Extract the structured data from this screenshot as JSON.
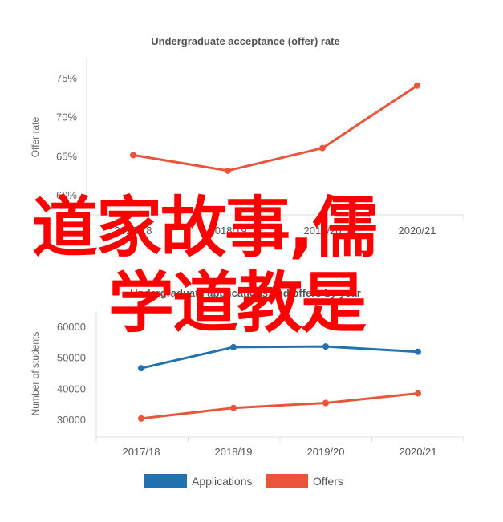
{
  "chart_data": [
    {
      "type": "line",
      "title": "Undergraduate acceptance (offer) rate",
      "ylabel": "Offer rate",
      "xlabel": "",
      "categories": [
        "2017/18",
        "2018/19",
        "2019/20",
        "2020/21"
      ],
      "series": [
        {
          "name": "",
          "values": [
            65.1,
            63.1,
            66.0,
            74.0
          ],
          "color": "#e8553b"
        }
      ],
      "ylim": [
        60,
        75
      ],
      "yticks": [
        60,
        65,
        70,
        75
      ],
      "ytick_labels": [
        "60%",
        "65%",
        "70%",
        "75%"
      ],
      "grid": false
    },
    {
      "type": "line",
      "title": "Undergraduate applications and offers by year",
      "ylabel": "Number of students",
      "xlabel": "",
      "categories": [
        "2017/18",
        "2018/19",
        "2019/20",
        "2020/21"
      ],
      "series": [
        {
          "name": "Applications",
          "values": [
            46500,
            53300,
            53500,
            51800
          ],
          "color": "#2272b2"
        },
        {
          "name": "Offers",
          "values": [
            30300,
            33700,
            35300,
            38400
          ],
          "color": "#e8553b"
        }
      ],
      "ylim": [
        27000,
        63000
      ],
      "yticks": [
        30000,
        40000,
        50000,
        60000
      ],
      "ytick_labels": [
        "30000",
        "40000",
        "50000",
        "60000"
      ],
      "grid": false,
      "legend_position": "bottom"
    }
  ],
  "overlay": {
    "line1": "道家故事,儒",
    "line2": "学道教是",
    "color": "#ff0000"
  }
}
